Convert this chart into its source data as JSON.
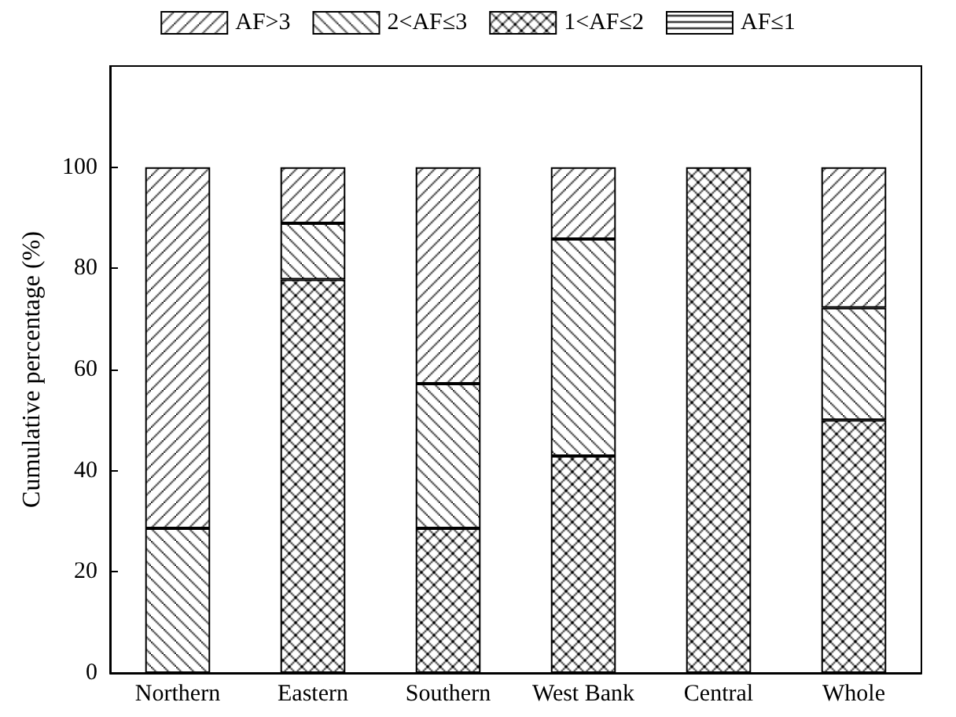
{
  "chart_data": {
    "type": "bar",
    "stacked": true,
    "ylabel": "Cumulative percentage (%)",
    "categories": [
      "Northern",
      "Eastern",
      "Southern",
      "West Bank",
      "Central",
      "Whole"
    ],
    "series": [
      {
        "name": "AF≤1",
        "color": "#000000",
        "values": [
          0,
          0,
          0,
          0,
          0,
          0
        ]
      },
      {
        "name": "1<AF≤2",
        "color": "#000000",
        "values": [
          0,
          77.8,
          28.6,
          42.9,
          100,
          50
        ]
      },
      {
        "name": "2<AF≤3",
        "color": "#000000",
        "values": [
          28.6,
          11.1,
          28.6,
          42.9,
          0,
          22.2
        ]
      },
      {
        "name": "AF>3",
        "color": "#000000",
        "values": [
          71.4,
          11.1,
          42.8,
          14.2,
          0,
          27.8
        ]
      }
    ],
    "ylim": [
      0,
      120
    ],
    "yticks": [
      0,
      20,
      40,
      60,
      80,
      100
    ],
    "grid": false,
    "legend": "top"
  }
}
